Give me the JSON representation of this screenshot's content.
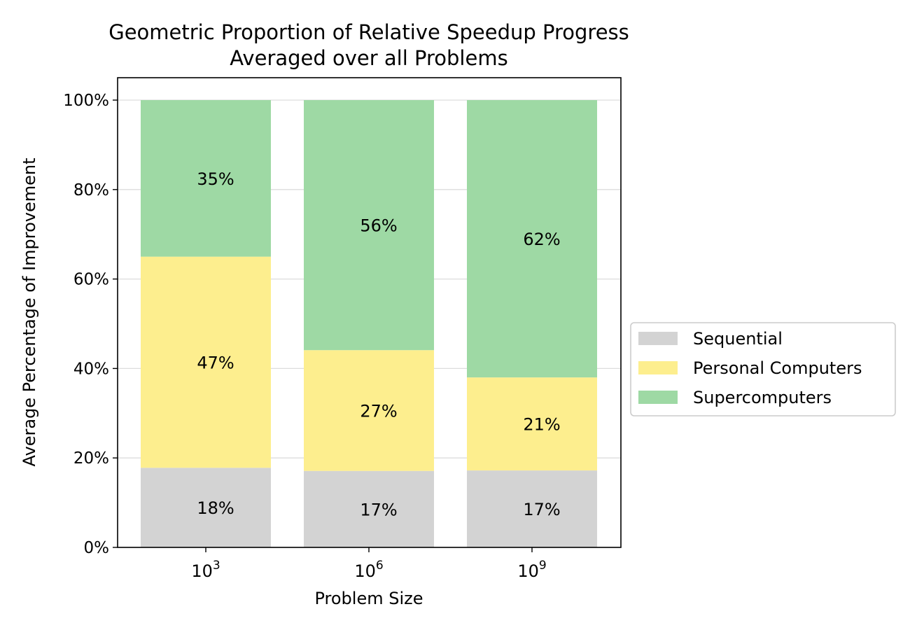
{
  "chart_data": {
    "type": "bar",
    "stacked": true,
    "title": "Geometric Proportion of Relative Speedup Progress",
    "subtitle": "Averaged over all Problems",
    "xlabel": "Problem Size",
    "ylabel": "Average Percentage of Improvement",
    "ylim": [
      0,
      100
    ],
    "grid": "y-axis horizontal lines",
    "legend_position": "right",
    "categories": [
      {
        "base": "10",
        "exponent": "3"
      },
      {
        "base": "10",
        "exponent": "6"
      },
      {
        "base": "10",
        "exponent": "9"
      }
    ],
    "y_ticks": [
      {
        "value": 0,
        "label": "0%"
      },
      {
        "value": 20,
        "label": "20%"
      },
      {
        "value": 40,
        "label": "40%"
      },
      {
        "value": 60,
        "label": "60%"
      },
      {
        "value": 80,
        "label": "80%"
      },
      {
        "value": 100,
        "label": "100%"
      }
    ],
    "series": [
      {
        "name": "Sequential",
        "color": "#d3d3d3",
        "values": [
          17.8,
          17.1,
          17.2
        ],
        "labels": [
          "18%",
          "17%",
          "17%"
        ]
      },
      {
        "name": "Personal Computers",
        "color": "#fdee8e",
        "values": [
          47.2,
          27.0,
          20.8
        ],
        "labels": [
          "47%",
          "27%",
          "21%"
        ]
      },
      {
        "name": "Supercomputers",
        "color": "#9ed9a4",
        "values": [
          35.0,
          55.9,
          62.0
        ],
        "labels": [
          "35%",
          "56%",
          "62%"
        ]
      }
    ]
  }
}
